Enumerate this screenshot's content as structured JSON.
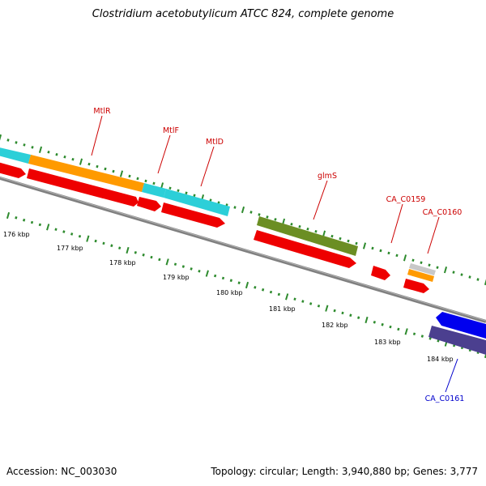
{
  "title": "Clostridium acetobutylicum ATCC 824, complete genome",
  "footer": {
    "accession": "Accession: NC_003030",
    "summary": "Topology: circular; Length: 3,940,880 bp; Genes: 3,777"
  },
  "colors": {
    "forward_gene": "#ff0000",
    "reverse_gene": "#0000ff",
    "cds_cyan": "#2ccfd8",
    "cds_orange": "#ff9a00",
    "cds_olive": "#6b8e23",
    "cds_purple": "#4b3f8f",
    "cds_grey": "#c8c8c8",
    "backbone": "#808080",
    "ticks": "#2e8b2e"
  },
  "scale_labels": [
    "176 kbp",
    "177 kbp",
    "178 kbp",
    "179 kbp",
    "180 kbp",
    "181 kbp",
    "182 kbp",
    "183 kbp",
    "184 kbp"
  ],
  "gene_labels": [
    {
      "name": "mtlR",
      "text": "MtlR",
      "strand": "forward"
    },
    {
      "name": "mtlF",
      "text": "MtlF",
      "strand": "forward"
    },
    {
      "name": "mtlD",
      "text": "MtlD",
      "strand": "forward"
    },
    {
      "name": "glms",
      "text": "glmS",
      "strand": "forward"
    },
    {
      "name": "ca-c0159",
      "text": "CA_C0159",
      "strand": "forward"
    },
    {
      "name": "ca-c0160",
      "text": "CA_C0160",
      "strand": "forward"
    },
    {
      "name": "ca-c0161",
      "text": "CA_C0161",
      "strand": "reverse"
    }
  ]
}
